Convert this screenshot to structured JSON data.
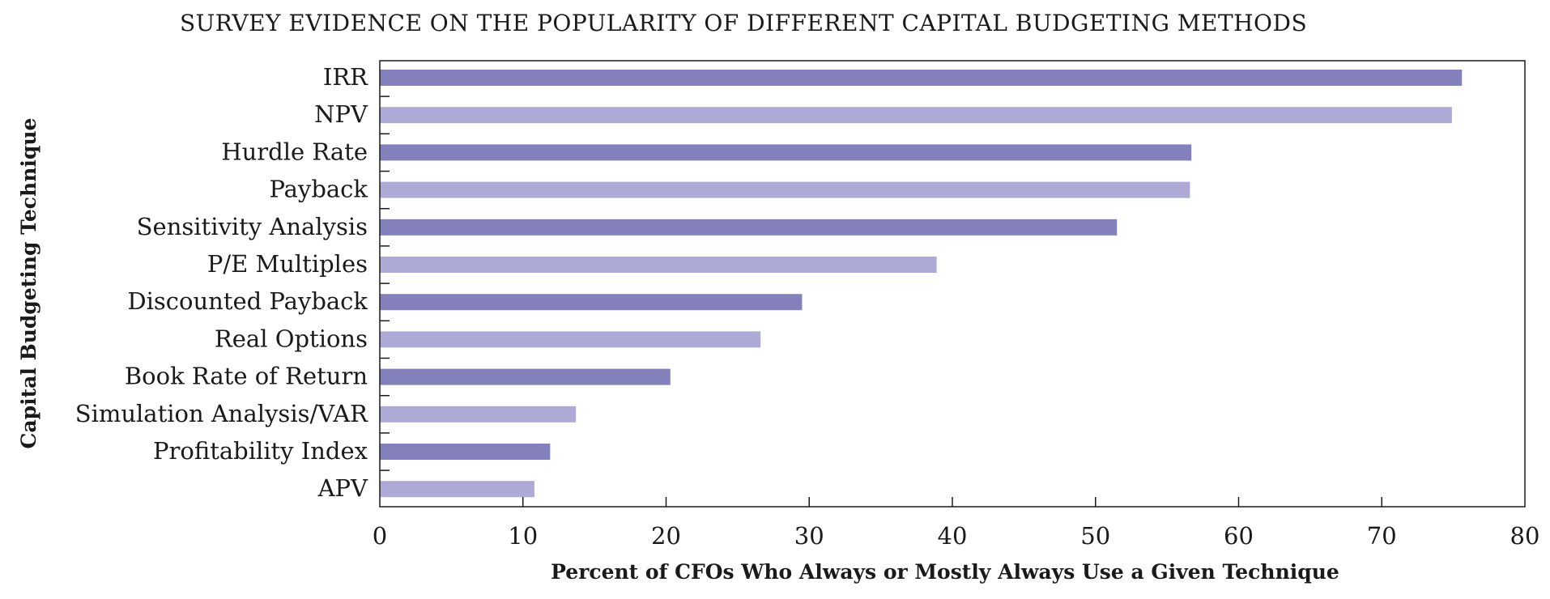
{
  "chart_data": {
    "type": "bar",
    "orientation": "horizontal",
    "title": "SURVEY EVIDENCE ON THE POPULARITY OF DIFFERENT CAPITAL BUDGETING METHODS",
    "xlabel": "Percent of CFOs Who Always or Mostly Always Use a Given Technique",
    "ylabel": "Capital Budgeting Technique",
    "categories": [
      "IRR",
      "NPV",
      "Hurdle Rate",
      "Payback",
      "Sensitivity Analysis",
      "P/E Multiples",
      "Discounted Payback",
      "Real Options",
      "Book Rate of Return",
      "Simulation Analysis/VAR",
      "Profitability Index",
      "APV"
    ],
    "values": [
      75.6,
      74.9,
      56.7,
      56.6,
      51.5,
      38.9,
      29.5,
      26.6,
      20.3,
      13.7,
      11.9,
      10.8
    ],
    "xlim": [
      0,
      80
    ],
    "xticks": [
      0,
      10,
      20,
      30,
      40,
      50,
      60,
      70,
      80
    ],
    "grid": false,
    "colors": [
      "#8480bb",
      "#adaad6"
    ]
  }
}
